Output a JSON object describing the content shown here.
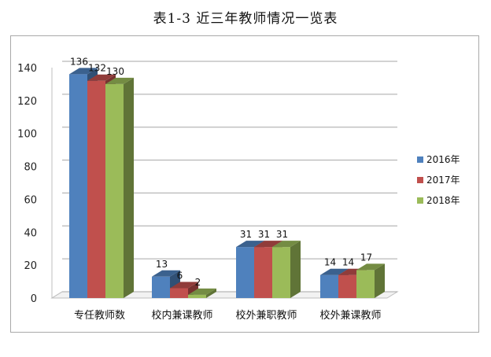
{
  "chart_data": {
    "type": "bar",
    "title": "表1-3 近三年教师情况一览表",
    "categories": [
      "专任教师数",
      "校内兼课教师",
      "校外兼职教师",
      "校外兼课教师"
    ],
    "series": [
      {
        "name": "2016年",
        "color": "#4f81bd",
        "values": [
          136,
          13,
          31,
          14
        ]
      },
      {
        "name": "2017年",
        "color": "#c0504d",
        "values": [
          132,
          6,
          31,
          14
        ]
      },
      {
        "name": "2018年",
        "color": "#9bbb59",
        "values": [
          130,
          2,
          31,
          17
        ]
      }
    ],
    "ylim": [
      0,
      140
    ],
    "yticks": [
      "0",
      "20",
      "40",
      "60",
      "80",
      "100",
      "120",
      "140"
    ],
    "grid": true,
    "legend_position": "right",
    "data_labels": true,
    "style": "3d-clustered"
  }
}
